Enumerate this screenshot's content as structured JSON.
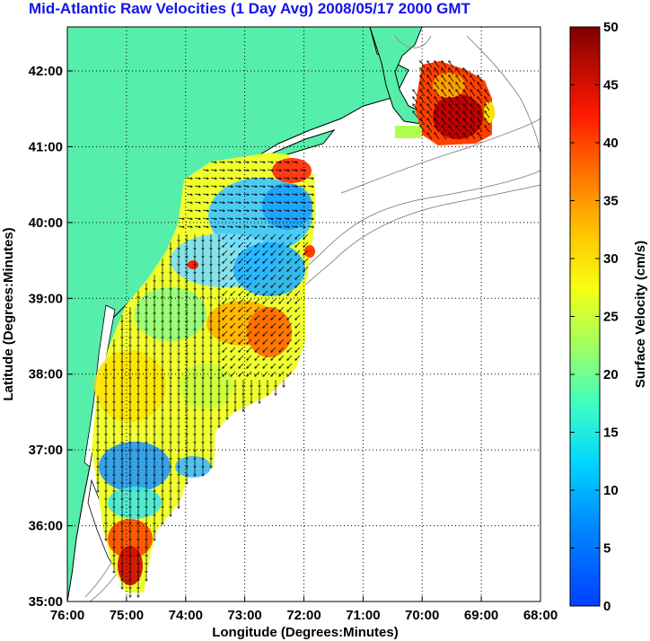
{
  "title": "Mid-Atlantic Raw Velocities (1 Day Avg) 2008/05/17 2000 GMT",
  "map": {
    "xlabel": "Longitude (Degrees:Minutes)",
    "ylabel": "Latitude (Degrees:Minutes)",
    "x_ticks": [
      "76:00",
      "75:00",
      "74:00",
      "73:00",
      "72:00",
      "71:00",
      "70:00",
      "69:00",
      "68:00"
    ],
    "y_ticks": [
      "35:00",
      "36:00",
      "37:00",
      "38:00",
      "39:00",
      "40:00",
      "41:00",
      "42:00"
    ],
    "land_color": "#55eeaa",
    "coast_color": "#000000",
    "grid": "dotted"
  },
  "colorbar": {
    "label": "Surface Velocity (cm/s)",
    "range": [
      0,
      50
    ],
    "ticks": [
      "0",
      "5",
      "10",
      "15",
      "20",
      "25",
      "30",
      "35",
      "40",
      "45",
      "50"
    ],
    "colormap": "jet"
  }
}
